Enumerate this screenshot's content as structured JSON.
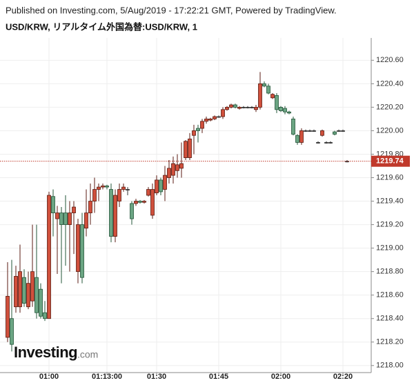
{
  "chart_data": {
    "type": "candlestick",
    "published": "Published on Investing.com, 5/Aug/2019 - 17:22:21 GMT, Powered by TradingView.",
    "title": "USD/KRW, リアルタイム外国為替:USD/KRW, 1",
    "logo": {
      "name": "Investing",
      "domain": ".com"
    },
    "up_color": "#d0503c",
    "up_border": "#5a1a10",
    "down_color": "#6ba583",
    "down_border": "#225437",
    "last_price": 1219.74,
    "last_price_color": "#c0392b",
    "grid": true,
    "ylim": [
      1217.94,
      1220.79
    ],
    "yticks": [
      {
        "value": 1218.0,
        "label": "1218.00"
      },
      {
        "value": 1218.2,
        "label": "1218.20"
      },
      {
        "value": 1218.4,
        "label": "1218.40"
      },
      {
        "value": 1218.6,
        "label": "1218.60"
      },
      {
        "value": 1218.8,
        "label": "1218.80"
      },
      {
        "value": 1219.0,
        "label": "1219.00"
      },
      {
        "value": 1219.2,
        "label": "1219.20"
      },
      {
        "value": 1219.4,
        "label": "1219.40"
      },
      {
        "value": 1219.6,
        "label": "1219.60"
      },
      {
        "value": 1219.8,
        "label": "1219.80"
      },
      {
        "value": 1220.0,
        "label": "1220.00"
      },
      {
        "value": 1220.2,
        "label": "1220.20"
      },
      {
        "value": 1220.4,
        "label": "1220.40"
      },
      {
        "value": 1220.6,
        "label": "1220.60"
      }
    ],
    "categories": [
      null,
      null,
      null,
      null,
      null,
      null,
      null,
      null,
      null,
      null,
      "01:00",
      null,
      null,
      null,
      null,
      null,
      null,
      null,
      null,
      null,
      null,
      null,
      null,
      null,
      "01:13:00",
      null,
      null,
      null,
      null,
      null,
      null,
      null,
      null,
      null,
      null,
      null,
      "01:30",
      null,
      null,
      null,
      null,
      null,
      null,
      null,
      null,
      null,
      null,
      null,
      null,
      null,
      null,
      "01:45",
      null,
      null,
      null,
      null,
      null,
      null,
      null,
      null,
      null,
      null,
      null,
      null,
      null,
      null,
      "02:00",
      null,
      null,
      null,
      null,
      null,
      null,
      null,
      null,
      null,
      null,
      null,
      null,
      null,
      null,
      "02:20",
      null
    ],
    "open": [
      1218.24,
      1218.4,
      1218.5,
      1218.5,
      1218.75,
      1218.5,
      1218.55,
      1218.75,
      1218.65,
      1218.45,
      1218.4,
      1219.44,
      1219.25,
      1219.3,
      1219.3,
      1219.2,
      1219.3,
      1218.8,
      1219.2,
      1219.17,
      1219.3,
      1219.4,
      1219.5,
      1219.52,
      1219.53,
      1219.5,
      1219.1,
      1219.4,
      1219.5,
      1219.5,
      1219.38,
      1219.38,
      1219.4,
      1219.39,
      1219.45,
      1219.28,
      1219.47,
      1219.58,
      1219.5,
      1219.6,
      1219.62,
      1219.66,
      1219.68,
      1219.77,
      1219.77,
      1219.96,
      1220.02,
      1220.02,
      1220.08,
      1220.09,
      1220.1,
      1220.12,
      1220.12,
      1220.18,
      1220.2,
      1220.22,
      1220.19,
      1220.2,
      1220.2,
      1220.2,
      1220.18,
      1220.2,
      1220.4,
      1220.38,
      1220.28,
      1220.3,
      1220.2,
      1220.19,
      1220.16,
      1220.1,
      1219.96,
      1219.9,
      1220.0,
      1220.0,
      1220.0,
      1219.9,
      1219.96,
      1219.9,
      1219.9,
      1219.99,
      1220.0,
      1220.0,
      1219.74
    ],
    "high": [
      1218.88,
      1218.9,
      1218.85,
      1219.03,
      1218.82,
      1218.8,
      1219.2,
      1219.2,
      1218.7,
      1218.55,
      1219.48,
      1219.5,
      1219.36,
      1219.35,
      1219.45,
      1219.4,
      1219.4,
      1219.25,
      1219.3,
      1219.5,
      1219.55,
      1219.6,
      1219.55,
      1219.55,
      1219.54,
      1219.55,
      1219.5,
      1219.55,
      1219.55,
      1219.52,
      1219.4,
      1219.42,
      1219.41,
      1219.41,
      1219.52,
      1219.55,
      1219.62,
      1219.6,
      1219.7,
      1219.75,
      1219.78,
      1219.8,
      1219.9,
      1219.92,
      1219.98,
      1220.05,
      1220.05,
      1220.1,
      1220.12,
      1220.11,
      1220.13,
      1220.13,
      1220.2,
      1220.21,
      1220.23,
      1220.23,
      1220.21,
      1220.21,
      1220.21,
      1220.21,
      1220.22,
      1220.5,
      1220.42,
      1220.4,
      1220.32,
      1220.32,
      1220.21,
      1220.21,
      1220.17,
      1220.12,
      1219.97,
      1220.02,
      1220.01,
      1220.01,
      1220.01,
      1219.91,
      1220.01,
      1219.91,
      1219.91,
      1220.0,
      1220.01,
      1220.01,
      1219.75
    ],
    "low": [
      1218.2,
      1218.12,
      1218.45,
      1218.45,
      1218.5,
      1218.48,
      1218.5,
      1218.4,
      1218.4,
      1218.38,
      1218.4,
      1219.1,
      1218.78,
      1218.7,
      1218.85,
      1218.8,
      1218.95,
      1218.7,
      1218.7,
      1219.1,
      1219.2,
      1219.3,
      1219.4,
      1219.5,
      1219.5,
      1219.05,
      1219.05,
      1219.35,
      1219.48,
      1219.45,
      1219.2,
      1219.36,
      1219.38,
      1219.38,
      1219.44,
      1219.25,
      1219.45,
      1219.45,
      1219.4,
      1219.55,
      1219.55,
      1219.6,
      1219.6,
      1219.75,
      1219.75,
      1219.8,
      1219.9,
      1219.98,
      1220.06,
      1220.08,
      1220.09,
      1220.11,
      1220.1,
      1220.17,
      1220.19,
      1220.19,
      1220.18,
      1220.19,
      1220.19,
      1220.19,
      1220.16,
      1220.18,
      1220.37,
      1220.31,
      1220.27,
      1220.15,
      1220.16,
      1220.14,
      1220.14,
      1219.96,
      1219.88,
      1219.88,
      1219.99,
      1219.99,
      1219.99,
      1219.89,
      1219.95,
      1219.89,
      1219.89,
      1219.96,
      1219.99,
      1219.99,
      1219.73
    ],
    "close": [
      1218.59,
      1218.18,
      1218.76,
      1218.8,
      1218.53,
      1218.7,
      1218.8,
      1218.45,
      1218.42,
      1218.4,
      1219.45,
      1219.3,
      1219.3,
      1219.2,
      1219.2,
      1219.3,
      1219.35,
      1219.2,
      1218.75,
      1219.3,
      1219.4,
      1219.5,
      1219.52,
      1219.53,
      1219.52,
      1219.1,
      1219.45,
      1219.5,
      1219.52,
      1219.5,
      1219.25,
      1219.4,
      1219.39,
      1219.4,
      1219.5,
      1219.5,
      1219.58,
      1219.48,
      1219.62,
      1219.68,
      1219.72,
      1219.71,
      1219.72,
      1219.91,
      1219.93,
      1220.0,
      1220.0,
      1220.08,
      1220.1,
      1220.1,
      1220.12,
      1220.12,
      1220.18,
      1220.2,
      1220.22,
      1220.2,
      1220.2,
      1220.2,
      1220.2,
      1220.2,
      1220.2,
      1220.4,
      1220.38,
      1220.32,
      1220.31,
      1220.18,
      1220.17,
      1220.16,
      1220.15,
      1219.97,
      1219.9,
      1220.0,
      1220.0,
      1220.0,
      1220.0,
      1219.9,
      1220.0,
      1219.9,
      1219.9,
      1219.97,
      1220.0,
      1220.0,
      1219.74
    ]
  }
}
